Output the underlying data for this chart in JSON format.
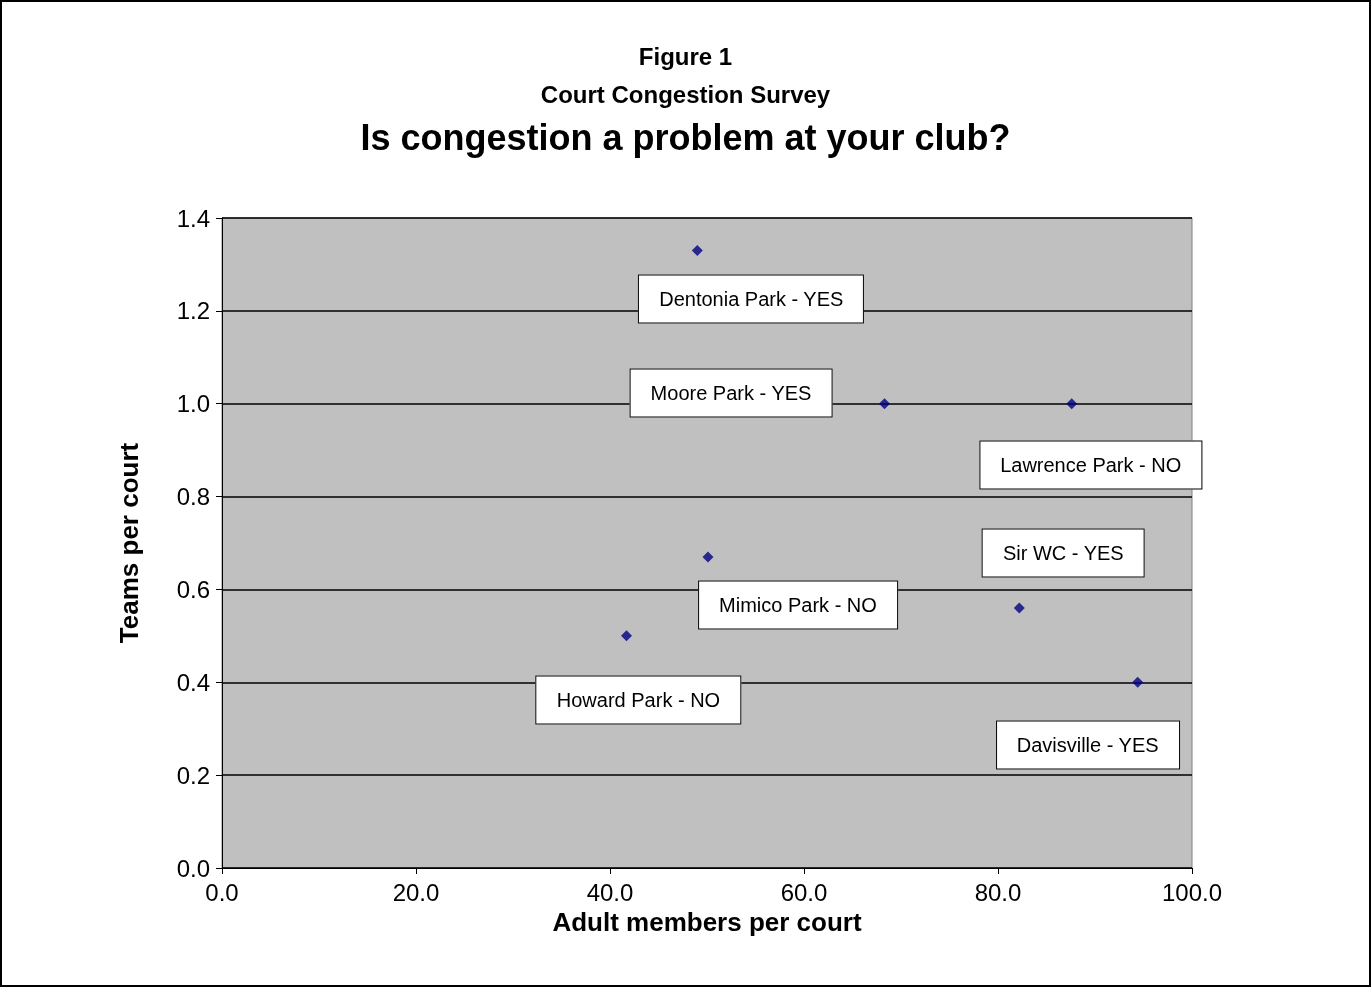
{
  "chart_data": {
    "type": "scatter",
    "title": "Is congestion a problem at your club?",
    "xlabel": "Adult members per court",
    "ylabel": "Teams per court",
    "annotations": [
      "Figure 1",
      "Court Congestion Survey",
      {
        "text": "Dentonia Park - YES",
        "x": 49.0,
        "y": 1.33
      },
      "Moore Park - YES",
      {
        "text": "Lawrence Park - NO",
        "x": 87.6,
        "y": 1.0
      },
      {
        "text": "Sir WC - YES",
        "x": 82.2,
        "y": 0.56
      },
      {
        "text": "Mimico Park - NO",
        "x": 50.1,
        "y": 0.67
      },
      {
        "text": "Howard Park - NO",
        "x": 41.7,
        "y": 0.5
      },
      {
        "text": "Davisville - YES",
        "x": 94.4,
        "y": 0.4
      }
    ],
    "x": [
      49.0,
      68.3,
      87.6,
      50.1,
      41.7,
      82.2,
      94.4
    ],
    "values": [
      1.33,
      1.0,
      1.0,
      0.67,
      0.5,
      0.56,
      0.4
    ],
    "color": "#000080",
    "marker": "diamond",
    "grid": "y",
    "xlim": [
      0,
      100
    ],
    "xticks": [
      {
        "value": 0,
        "label": "0.0"
      },
      {
        "value": 20,
        "label": "20.0"
      },
      {
        "value": 40,
        "label": "40.0"
      },
      {
        "value": 60,
        "label": "60.0"
      },
      {
        "value": 80,
        "label": "80.0"
      },
      {
        "value": 100,
        "label": "100.0"
      }
    ],
    "ylim": [
      0,
      1.4
    ],
    "yticks": [
      {
        "value": 0,
        "label": "0.0"
      },
      0.2,
      0.4,
      0.6,
      0.8,
      {
        "value": 1,
        "label": "1.0"
      },
      1.2,
      1.4
    ]
  }
}
